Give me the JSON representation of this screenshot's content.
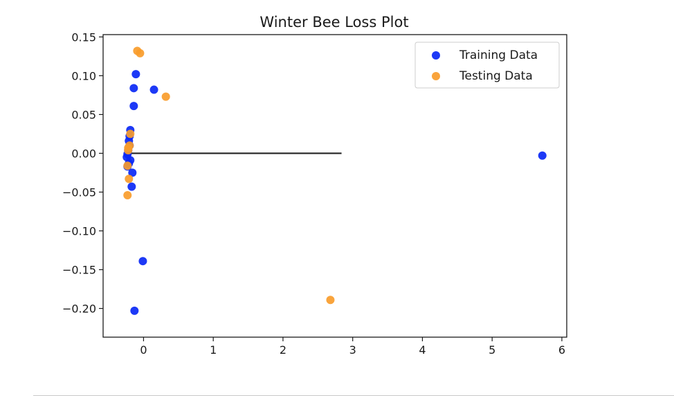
{
  "chart_data": {
    "type": "scatter",
    "title": "Winter Bee Loss Plot",
    "xlabel": "",
    "ylabel": "",
    "xlim": [
      -0.58,
      6.07
    ],
    "ylim": [
      -0.237,
      0.153
    ],
    "x_ticks": [
      0,
      1,
      2,
      3,
      4,
      5,
      6
    ],
    "x_tick_labels": [
      "0",
      "1",
      "2",
      "3",
      "4",
      "5",
      "6"
    ],
    "y_ticks": [
      0.15,
      0.1,
      0.05,
      0.0,
      -0.05,
      -0.1,
      -0.15,
      -0.2
    ],
    "y_tick_labels": [
      "0.15",
      "0.10",
      "0.05",
      "0.00",
      "−0.05",
      "−0.10",
      "−0.15",
      "−0.20"
    ],
    "grid": false,
    "legend_position": "top-right",
    "series": [
      {
        "name": "Training Data",
        "color": "#0a28f5",
        "points": [
          [
            -0.11,
            0.102
          ],
          [
            -0.14,
            0.084
          ],
          [
            0.15,
            0.082
          ],
          [
            -0.14,
            0.061
          ],
          [
            -0.19,
            0.03
          ],
          [
            -0.2,
            0.022
          ],
          [
            -0.21,
            0.016
          ],
          [
            -0.2,
            0.01
          ],
          [
            -0.22,
            0.004
          ],
          [
            -0.23,
            -0.001
          ],
          [
            -0.24,
            -0.005
          ],
          [
            -0.19,
            -0.009
          ],
          [
            -0.21,
            -0.013
          ],
          [
            -0.23,
            -0.017
          ],
          [
            -0.16,
            -0.025
          ],
          [
            -0.17,
            -0.043
          ],
          [
            -0.01,
            -0.139
          ],
          [
            -0.13,
            -0.203
          ],
          [
            5.72,
            -0.003
          ]
        ]
      },
      {
        "name": "Testing Data",
        "color": "#f99c2b",
        "points": [
          [
            -0.09,
            0.132
          ],
          [
            -0.05,
            0.129
          ],
          [
            0.32,
            0.073
          ],
          [
            -0.19,
            0.025
          ],
          [
            -0.2,
            0.01
          ],
          [
            -0.22,
            0.007
          ],
          [
            -0.22,
            0.004
          ],
          [
            -0.23,
            -0.016
          ],
          [
            -0.21,
            -0.033
          ],
          [
            -0.23,
            -0.054
          ],
          [
            2.68,
            -0.189
          ]
        ]
      }
    ],
    "reference_line": {
      "x": [
        -0.21,
        2.84
      ],
      "y": 0.0,
      "color": "#222222"
    }
  }
}
